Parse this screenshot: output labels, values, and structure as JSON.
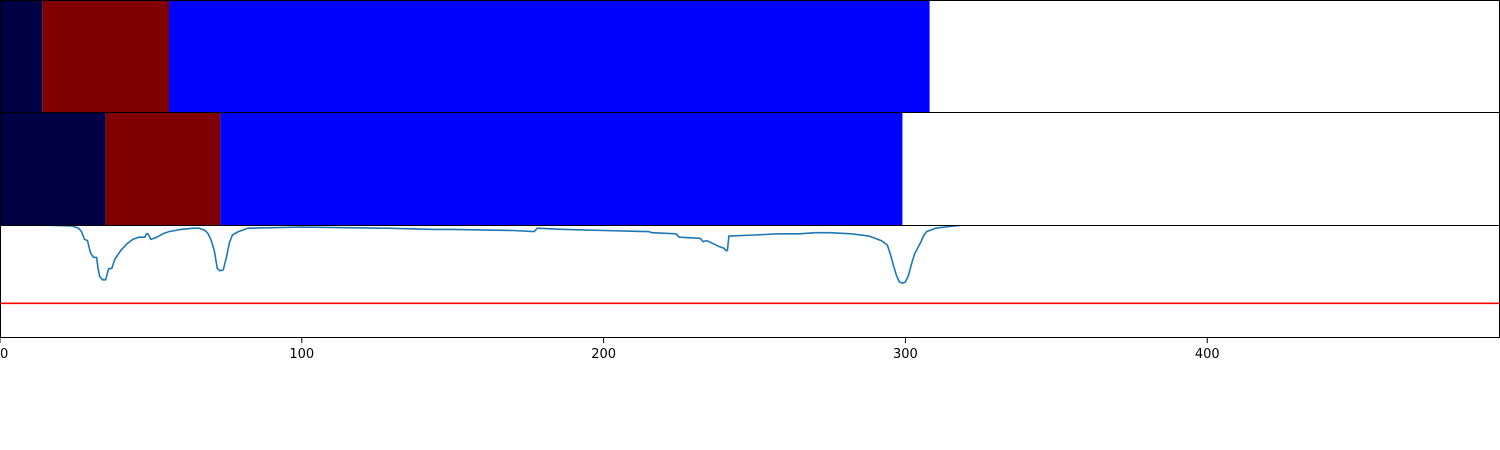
{
  "chart_data": [
    {
      "type": "bar",
      "subtype": "horizontal-stacked-segments",
      "panel": "top",
      "xlim": [
        0,
        497
      ],
      "segments": [
        {
          "start": 0,
          "end": 14,
          "color": "#000045"
        },
        {
          "start": 14,
          "end": 56,
          "color": "#800000"
        },
        {
          "start": 56,
          "end": 308,
          "color": "#0000ff"
        }
      ]
    },
    {
      "type": "bar",
      "subtype": "horizontal-stacked-segments",
      "panel": "middle",
      "xlim": [
        0,
        497
      ],
      "segments": [
        {
          "start": 0,
          "end": 35,
          "color": "#000045"
        },
        {
          "start": 35,
          "end": 73,
          "color": "#800000"
        },
        {
          "start": 73,
          "end": 299,
          "color": "#0000ff"
        }
      ]
    },
    {
      "type": "line",
      "panel": "bottom",
      "xlim": [
        0,
        497
      ],
      "ylim": [
        0,
        1
      ],
      "xticks": [
        0,
        100,
        200,
        300,
        400
      ],
      "xtick_labels": [
        "0",
        "100",
        "200",
        "300",
        "400"
      ],
      "threshold": {
        "value": 0.31,
        "color": "#ff0000"
      },
      "series": [
        {
          "color": "#1f77b4",
          "points": [
            [
              0,
              1.02
            ],
            [
              24,
              1.0
            ],
            [
              26,
              0.98
            ],
            [
              27,
              0.95
            ],
            [
              28,
              0.88
            ],
            [
              29,
              0.87
            ],
            [
              30,
              0.76
            ],
            [
              31,
              0.72
            ],
            [
              32,
              0.72
            ],
            [
              32.5,
              0.62
            ],
            [
              33,
              0.55
            ],
            [
              34,
              0.52
            ],
            [
              35,
              0.52
            ],
            [
              36,
              0.62
            ],
            [
              37,
              0.62
            ],
            [
              38,
              0.7
            ],
            [
              40,
              0.78
            ],
            [
              42,
              0.84
            ],
            [
              44,
              0.88
            ],
            [
              46,
              0.9
            ],
            [
              48,
              0.9
            ],
            [
              48.5,
              0.93
            ],
            [
              49,
              0.93
            ],
            [
              50,
              0.88
            ],
            [
              52,
              0.9
            ],
            [
              54,
              0.93
            ],
            [
              56,
              0.95
            ],
            [
              58,
              0.96
            ],
            [
              60,
              0.97
            ],
            [
              64,
              0.98
            ],
            [
              66,
              0.98
            ],
            [
              68,
              0.96
            ],
            [
              69,
              0.93
            ],
            [
              70,
              0.87
            ],
            [
              71,
              0.78
            ],
            [
              72,
              0.62
            ],
            [
              73,
              0.6
            ],
            [
              74,
              0.61
            ],
            [
              75,
              0.72
            ],
            [
              76,
              0.85
            ],
            [
              77,
              0.92
            ],
            [
              79,
              0.95
            ],
            [
              82,
              0.98
            ],
            [
              100,
              0.99
            ],
            [
              128,
              0.98
            ],
            [
              144,
              0.97
            ],
            [
              150,
              0.97
            ],
            [
              170,
              0.96
            ],
            [
              177,
              0.95
            ],
            [
              178,
              0.98
            ],
            [
              187,
              0.97
            ],
            [
              200,
              0.96
            ],
            [
              215,
              0.95
            ],
            [
              216,
              0.94
            ],
            [
              224,
              0.93
            ],
            [
              225,
              0.9
            ],
            [
              232,
              0.89
            ],
            [
              233,
              0.86
            ],
            [
              234,
              0.87
            ],
            [
              235,
              0.86
            ],
            [
              238,
              0.82
            ],
            [
              240,
              0.8
            ],
            [
              240.5,
              0.78
            ],
            [
              241,
              0.78
            ],
            [
              241.5,
              0.91
            ],
            [
              250,
              0.92
            ],
            [
              258,
              0.93
            ],
            [
              265,
              0.93
            ],
            [
              270,
              0.94
            ],
            [
              275,
              0.94
            ],
            [
              282,
              0.93
            ],
            [
              288,
              0.91
            ],
            [
              292,
              0.87
            ],
            [
              294,
              0.83
            ],
            [
              295,
              0.75
            ],
            [
              296,
              0.65
            ],
            [
              297,
              0.56
            ],
            [
              298,
              0.5
            ],
            [
              299,
              0.49
            ],
            [
              300,
              0.5
            ],
            [
              301,
              0.56
            ],
            [
              302,
              0.66
            ],
            [
              303,
              0.75
            ],
            [
              305,
              0.85
            ],
            [
              306,
              0.91
            ],
            [
              307,
              0.95
            ],
            [
              310,
              0.98
            ],
            [
              316,
              1.0
            ],
            [
              320,
              1.01
            ],
            [
              330,
              1.02
            ]
          ]
        }
      ]
    }
  ]
}
